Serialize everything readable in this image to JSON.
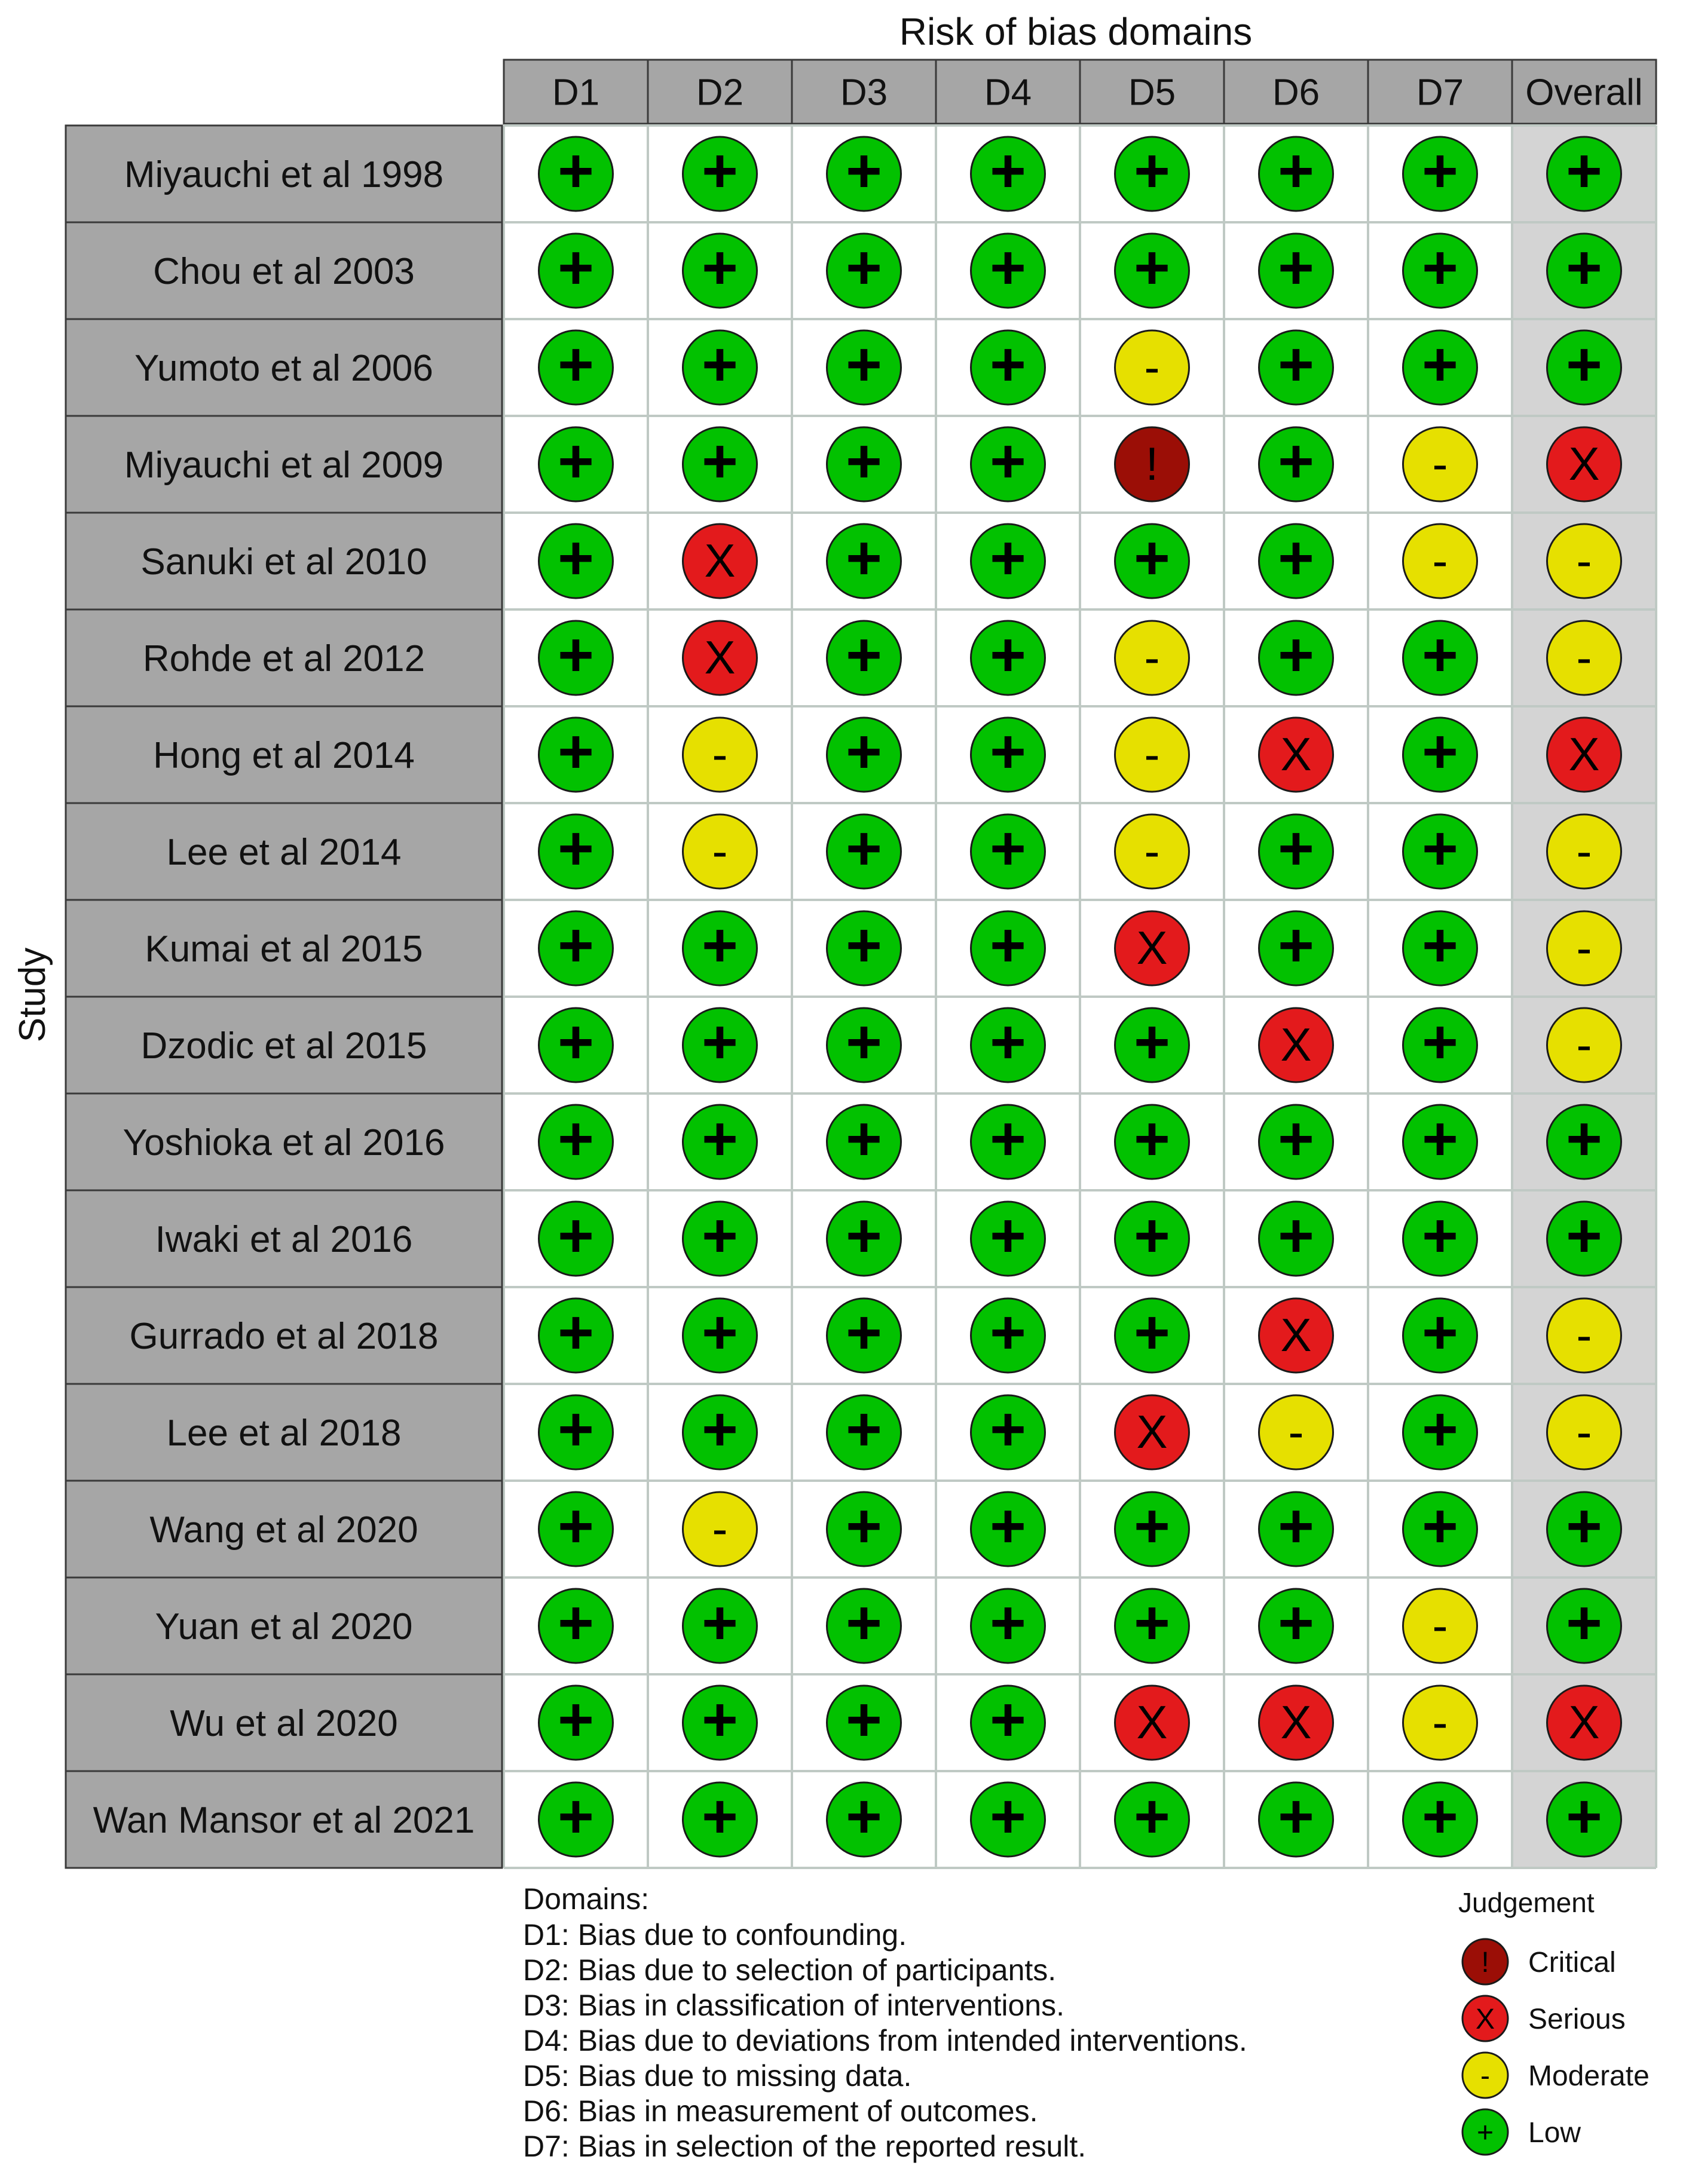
{
  "chart_data": {
    "type": "table",
    "title": "Risk of bias domains",
    "ylabel": "Study",
    "domains": [
      "D1",
      "D2",
      "D3",
      "D4",
      "D5",
      "D6",
      "D7",
      "Overall"
    ],
    "studies": [
      {
        "name": "Miyauchi et al 1998",
        "judgements": [
          "Low",
          "Low",
          "Low",
          "Low",
          "Low",
          "Low",
          "Low",
          "Low"
        ]
      },
      {
        "name": "Chou et al 2003",
        "judgements": [
          "Low",
          "Low",
          "Low",
          "Low",
          "Low",
          "Low",
          "Low",
          "Low"
        ]
      },
      {
        "name": "Yumoto et al 2006",
        "judgements": [
          "Low",
          "Low",
          "Low",
          "Low",
          "Moderate",
          "Low",
          "Low",
          "Low"
        ]
      },
      {
        "name": "Miyauchi et al 2009",
        "judgements": [
          "Low",
          "Low",
          "Low",
          "Low",
          "Critical",
          "Low",
          "Moderate",
          "Serious"
        ]
      },
      {
        "name": "Sanuki et al 2010",
        "judgements": [
          "Low",
          "Serious",
          "Low",
          "Low",
          "Low",
          "Low",
          "Moderate",
          "Moderate"
        ]
      },
      {
        "name": "Rohde et al 2012",
        "judgements": [
          "Low",
          "Serious",
          "Low",
          "Low",
          "Moderate",
          "Low",
          "Low",
          "Moderate"
        ]
      },
      {
        "name": "Hong et al 2014",
        "judgements": [
          "Low",
          "Moderate",
          "Low",
          "Low",
          "Moderate",
          "Serious",
          "Low",
          "Serious"
        ]
      },
      {
        "name": "Lee et al 2014",
        "judgements": [
          "Low",
          "Moderate",
          "Low",
          "Low",
          "Moderate",
          "Low",
          "Low",
          "Moderate"
        ]
      },
      {
        "name": "Kumai et al 2015",
        "judgements": [
          "Low",
          "Low",
          "Low",
          "Low",
          "Serious",
          "Low",
          "Low",
          "Moderate"
        ]
      },
      {
        "name": "Dzodic et al 2015",
        "judgements": [
          "Low",
          "Low",
          "Low",
          "Low",
          "Low",
          "Serious",
          "Low",
          "Moderate"
        ]
      },
      {
        "name": "Yoshioka et al 2016",
        "judgements": [
          "Low",
          "Low",
          "Low",
          "Low",
          "Low",
          "Low",
          "Low",
          "Low"
        ]
      },
      {
        "name": "Iwaki et al 2016",
        "judgements": [
          "Low",
          "Low",
          "Low",
          "Low",
          "Low",
          "Low",
          "Low",
          "Low"
        ]
      },
      {
        "name": "Gurrado et al 2018",
        "judgements": [
          "Low",
          "Low",
          "Low",
          "Low",
          "Low",
          "Serious",
          "Low",
          "Moderate"
        ]
      },
      {
        "name": "Lee et al 2018",
        "judgements": [
          "Low",
          "Low",
          "Low",
          "Low",
          "Serious",
          "Moderate",
          "Low",
          "Moderate"
        ]
      },
      {
        "name": "Wang et al 2020",
        "judgements": [
          "Low",
          "Moderate",
          "Low",
          "Low",
          "Low",
          "Low",
          "Low",
          "Low"
        ]
      },
      {
        "name": "Yuan et al 2020",
        "judgements": [
          "Low",
          "Low",
          "Low",
          "Low",
          "Low",
          "Low",
          "Moderate",
          "Low"
        ]
      },
      {
        "name": "Wu et al 2020",
        "judgements": [
          "Low",
          "Low",
          "Low",
          "Low",
          "Serious",
          "Serious",
          "Moderate",
          "Serious"
        ]
      },
      {
        "name": "Wan Mansor et al 2021",
        "judgements": [
          "Low",
          "Low",
          "Low",
          "Low",
          "Low",
          "Low",
          "Low",
          "Low"
        ]
      }
    ],
    "domains_legend_title": "Domains:",
    "domain_descriptions": [
      "D1: Bias due to confounding.",
      "D2: Bias due to selection of participants.",
      "D3: Bias in classification of interventions.",
      "D4: Bias due to deviations from intended interventions.",
      "D5: Bias due to missing data.",
      "D6: Bias in measurement of outcomes.",
      "D7: Bias in selection of the reported result."
    ],
    "judgement_legend_title": "Judgement",
    "judgement_legend": [
      {
        "label": "Critical",
        "symbol": "!",
        "color": "#9b0e06"
      },
      {
        "label": "Serious",
        "symbol": "X",
        "color": "#e31a1c"
      },
      {
        "label": "Moderate",
        "symbol": "-",
        "color": "#e6e000"
      },
      {
        "label": "Low",
        "symbol": "+",
        "color": "#02c100"
      }
    ]
  },
  "colors": {
    "Critical": "#9b0e06",
    "Serious": "#e31a1c",
    "Moderate": "#e6e000",
    "Low": "#02c100",
    "header_fill": "#a6a6a6",
    "overall_column_fill": "#d4d4d4"
  },
  "symbols": {
    "Critical": "!",
    "Serious": "X",
    "Moderate": "-",
    "Low": "+"
  }
}
